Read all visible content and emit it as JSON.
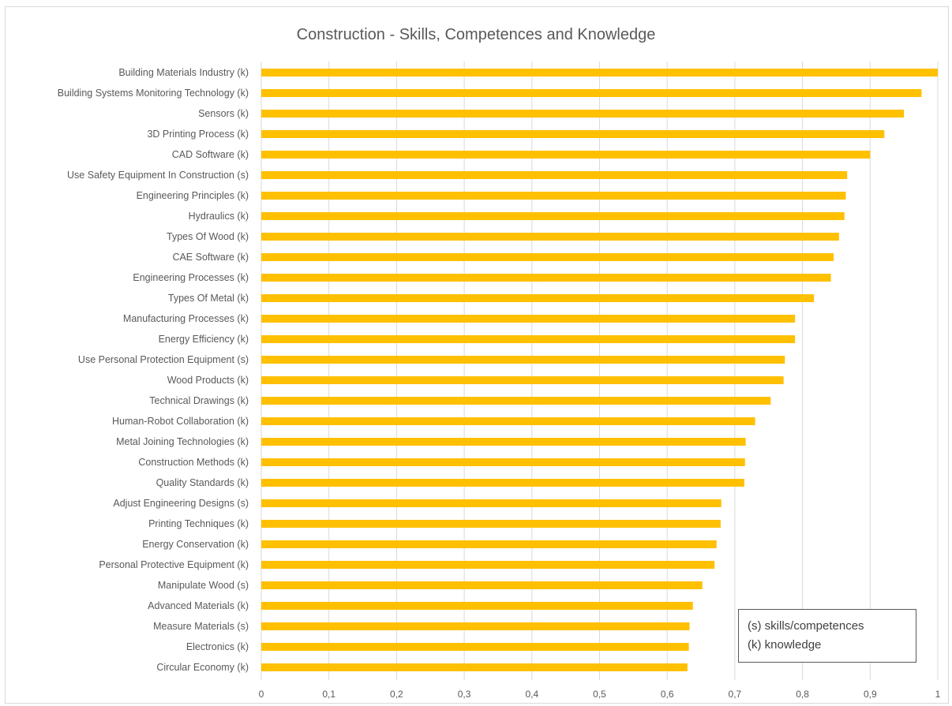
{
  "chart_data": {
    "type": "bar",
    "orientation": "horizontal",
    "title": "Construction - Skills, Competences and Knowledge",
    "xlabel": "",
    "ylabel": "",
    "xlim": [
      0,
      1
    ],
    "x_ticks": [
      {
        "value": 0,
        "label": "0"
      },
      {
        "value": 0.1,
        "label": "0,1"
      },
      {
        "value": 0.2,
        "label": "0,2"
      },
      {
        "value": 0.3,
        "label": "0,3"
      },
      {
        "value": 0.4,
        "label": "0,4"
      },
      {
        "value": 0.5,
        "label": "0,5"
      },
      {
        "value": 0.6,
        "label": "0,6"
      },
      {
        "value": 0.7,
        "label": "0,7"
      },
      {
        "value": 0.8,
        "label": "0,8"
      },
      {
        "value": 0.9,
        "label": "0,9"
      },
      {
        "value": 1,
        "label": "1"
      }
    ],
    "grid": "vertical",
    "bar_color": "#FFC000",
    "grid_color": "#D9D9D9",
    "categories": [
      "Building Materials Industry (k)",
      "Building Systems Monitoring Technology (k)",
      "Sensors (k)",
      "3D Printing Process (k)",
      "CAD Software (k)",
      "Use Safety Equipment In Construction (s)",
      "Engineering Principles (k)",
      "Hydraulics (k)",
      "Types Of Wood (k)",
      "CAE Software (k)",
      "Engineering Processes (k)",
      "Types Of Metal (k)",
      "Manufacturing Processes (k)",
      "Energy Efficiency (k)",
      "Use Personal Protection Equipment (s)",
      "Wood Products (k)",
      "Technical Drawings (k)",
      "Human-Robot Collaboration (k)",
      "Metal Joining Technologies (k)",
      "Construction Methods (k)",
      "Quality Standards (k)",
      "Adjust Engineering Designs (s)",
      "Printing Techniques (k)",
      "Energy Conservation (k)",
      "Personal Protective Equipment (k)",
      "Manipulate Wood (s)",
      "Advanced Materials (k)",
      "Measure Materials (s)",
      "Electronics (k)",
      "Circular Economy (k)"
    ],
    "values": [
      1.0,
      0.976,
      0.95,
      0.921,
      0.9,
      0.866,
      0.864,
      0.862,
      0.854,
      0.846,
      0.842,
      0.817,
      0.789,
      0.789,
      0.774,
      0.772,
      0.753,
      0.73,
      0.716,
      0.715,
      0.714,
      0.68,
      0.679,
      0.673,
      0.67,
      0.652,
      0.638,
      0.633,
      0.632,
      0.63
    ],
    "annotation": {
      "lines": [
        "(s) skills/competences",
        "(k) knowledge"
      ],
      "placement": "bottom-right"
    }
  }
}
